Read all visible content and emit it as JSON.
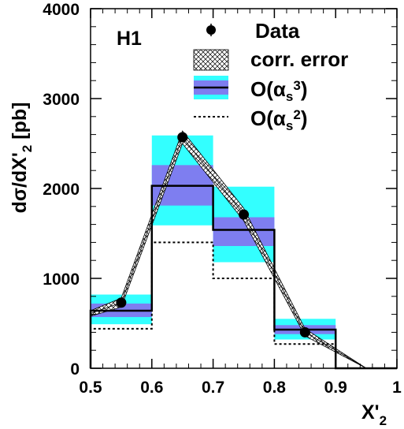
{
  "chart_data": {
    "type": "bar",
    "title": "H1",
    "xlabel": "X'",
    "xlabel_sub": "2",
    "ylabel": "dσ/dX'",
    "ylabel_sub": "2",
    "ylabel_unit": "[pb]",
    "xlim": [
      0.5,
      1.0
    ],
    "ylim": [
      0,
      4000
    ],
    "x_ticks": [
      {
        "value": 0.5,
        "label": "0.5"
      },
      {
        "value": 0.6,
        "label": "0.6"
      },
      {
        "value": 0.7,
        "label": "0.7"
      },
      {
        "value": 0.8,
        "label": "0.8"
      },
      {
        "value": 0.9,
        "label": "0.9"
      },
      {
        "value": 1.0,
        "label": "1"
      }
    ],
    "y_ticks": [
      {
        "value": 0,
        "label": "0"
      },
      {
        "value": 1000,
        "label": "1000"
      },
      {
        "value": 2000,
        "label": "2000"
      },
      {
        "value": 3000,
        "label": "3000"
      },
      {
        "value": 4000,
        "label": "4000"
      }
    ],
    "bins": [
      {
        "lo": 0.5,
        "hi": 0.6
      },
      {
        "lo": 0.6,
        "hi": 0.7
      },
      {
        "lo": 0.7,
        "hi": 0.8
      },
      {
        "lo": 0.8,
        "hi": 0.9
      },
      {
        "lo": 0.9,
        "hi": 1.0
      }
    ],
    "legend": {
      "placement": "top-right",
      "data": "Data",
      "corr_error": "corr. error",
      "alpha_s3": "O(αs3)",
      "alpha_s2": "O(αs2)"
    },
    "series": [
      {
        "name": "Data",
        "style": "points",
        "x": [
          0.55,
          0.65,
          0.75,
          0.85
        ],
        "values": [
          730,
          2570,
          1710,
          400
        ]
      },
      {
        "name": "corr. error",
        "style": "hatched-band",
        "x": [
          0.5,
          0.55,
          0.65,
          0.75,
          0.85,
          0.95
        ],
        "lower": [
          580,
          680,
          2500,
          1640,
          360,
          0
        ],
        "upper": [
          640,
          780,
          2640,
          1780,
          440,
          0
        ]
      },
      {
        "name": "O(αs3)",
        "style": "histogram",
        "values": [
          640,
          2030,
          1540,
          430,
          0
        ],
        "band_inner": [
          [
            570,
            720
          ],
          [
            1810,
            2260
          ],
          [
            1360,
            1680
          ],
          [
            380,
            480
          ],
          [
            0,
            0
          ]
        ],
        "band_outer": [
          [
            490,
            820
          ],
          [
            1590,
            2590
          ],
          [
            1180,
            2020
          ],
          [
            320,
            550
          ],
          [
            0,
            0
          ]
        ]
      },
      {
        "name": "O(αs2)",
        "style": "dotted-histogram",
        "values": [
          440,
          1400,
          1000,
          270,
          0
        ]
      }
    ],
    "colors": {
      "outer_band": "#33ffff",
      "inner_band": "#7e7ef0",
      "line": "#000000",
      "background": "#ffffff"
    },
    "grid": false
  }
}
